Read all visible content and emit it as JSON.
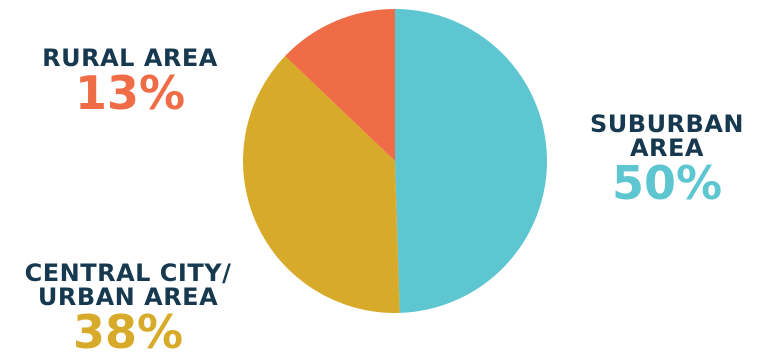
{
  "chart_data": {
    "type": "pie",
    "slices": [
      {
        "label_line1": "SUBURBAN",
        "label_line2": "AREA",
        "value": 50,
        "value_text": "50%",
        "color": "#5ec6d1"
      },
      {
        "label_line1": "CENTRAL CITY/",
        "label_line2": "URBAN AREA",
        "value": 38,
        "value_text": "38%",
        "color": "#d8aa2a"
      },
      {
        "label_line1": "RURAL AREA",
        "label_line2": "",
        "value": 13,
        "value_text": "13%",
        "color": "#ef6c47"
      }
    ],
    "start_angle_deg": 0,
    "direction": "clockwise",
    "label_color": "#16394f"
  }
}
